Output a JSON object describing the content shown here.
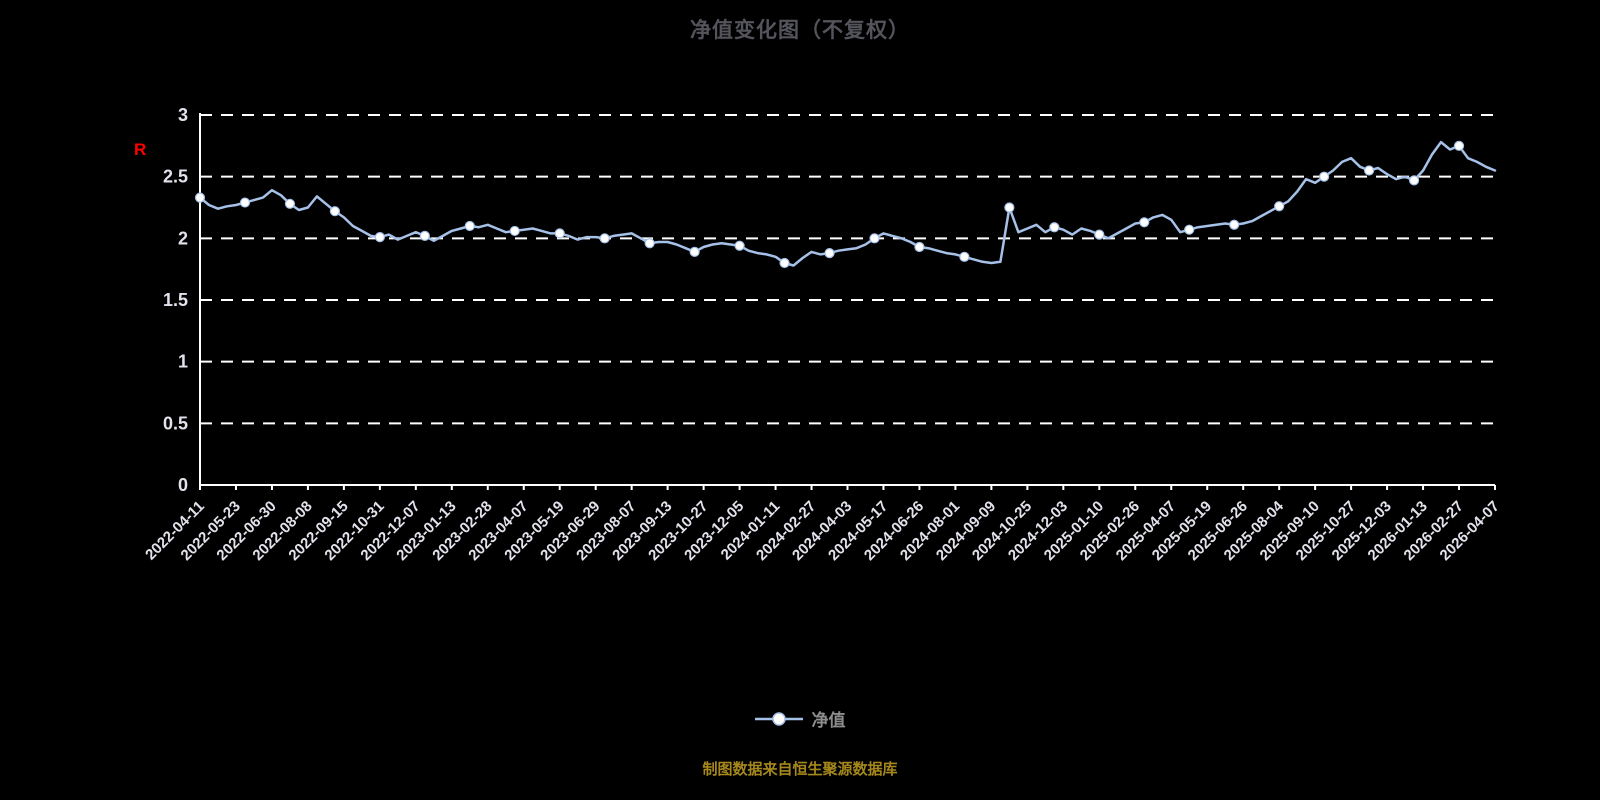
{
  "title": "净值变化图（不复权）",
  "r_marker": "R",
  "legend": {
    "label": "净值"
  },
  "source": "制图数据来自恒生聚源数据库",
  "colors": {
    "background": "#000000",
    "line": "#a6c1e8",
    "marker_fill": "#ffffff",
    "grid": "#ffffff",
    "axis": "#ffffff",
    "title": "#54545c",
    "tick_label": "#e2e2ec",
    "legend_label": "#8c8c8c",
    "source_text": "#a5871c",
    "r_marker": "#ff0000"
  },
  "chart_data": {
    "type": "line",
    "title": "净值变化图（不复权）",
    "legend_position": "bottom",
    "grid": "horizontal-dashed",
    "ylim": [
      0,
      3
    ],
    "y_ticks": [
      0,
      0.5,
      1,
      1.5,
      2,
      2.5,
      3
    ],
    "x_tick_every": 4,
    "marker_every": 5,
    "x_tick_labels": [
      "2022-04-11",
      "2022-05-23",
      "2022-06-30",
      "2022-08-08",
      "2022-09-15",
      "2022-10-31",
      "2022-12-07",
      "2023-01-13",
      "2023-02-28",
      "2023-04-07",
      "2023-05-19",
      "2023-06-29",
      "2023-08-07",
      "2023-09-13",
      "2023-10-27",
      "2023-12-05",
      "2024-01-11",
      "2024-02-27",
      "2024-04-03",
      "2024-05-17",
      "2024-06-26",
      "2024-08-01",
      "2024-09-09",
      "2024-10-25",
      "2024-12-03",
      "2025-01-10",
      "2025-02-26",
      "2025-04-07",
      "2025-05-19",
      "2025-06-26",
      "2025-08-04",
      "2025-09-10",
      "2025-10-27",
      "2025-12-03",
      "2026-01-13",
      "2026-02-27",
      "2026-04-07"
    ],
    "series": [
      {
        "name": "净值",
        "values": [
          2.33,
          2.27,
          2.24,
          2.26,
          2.27,
          2.29,
          2.31,
          2.33,
          2.39,
          2.35,
          2.28,
          2.23,
          2.25,
          2.34,
          2.28,
          2.22,
          2.17,
          2.1,
          2.06,
          2.02,
          2.01,
          2.03,
          1.99,
          2.02,
          2.05,
          2.02,
          1.98,
          2.02,
          2.06,
          2.08,
          2.1,
          2.09,
          2.11,
          2.08,
          2.05,
          2.06,
          2.07,
          2.08,
          2.06,
          2.04,
          2.04,
          2.02,
          1.99,
          2.01,
          2.01,
          2.0,
          2.02,
          2.03,
          2.04,
          2.0,
          1.96,
          1.97,
          1.97,
          1.95,
          1.92,
          1.89,
          1.93,
          1.95,
          1.96,
          1.95,
          1.94,
          1.9,
          1.88,
          1.87,
          1.85,
          1.8,
          1.78,
          1.84,
          1.89,
          1.87,
          1.88,
          1.9,
          1.91,
          1.92,
          1.95,
          2.0,
          2.04,
          2.02,
          2.0,
          1.97,
          1.93,
          1.92,
          1.9,
          1.88,
          1.87,
          1.85,
          1.83,
          1.81,
          1.8,
          1.81,
          2.25,
          2.05,
          2.08,
          2.11,
          2.05,
          2.09,
          2.07,
          2.03,
          2.08,
          2.06,
          2.03,
          2.0,
          2.04,
          2.08,
          2.12,
          2.13,
          2.17,
          2.19,
          2.15,
          2.05,
          2.07,
          2.09,
          2.1,
          2.11,
          2.12,
          2.11,
          2.12,
          2.14,
          2.18,
          2.22,
          2.26,
          2.3,
          2.38,
          2.48,
          2.45,
          2.5,
          2.55,
          2.62,
          2.65,
          2.58,
          2.55,
          2.57,
          2.52,
          2.48,
          2.5,
          2.47,
          2.55,
          2.68,
          2.78,
          2.72,
          2.75,
          2.65,
          2.62,
          2.58,
          2.55
        ]
      }
    ]
  }
}
